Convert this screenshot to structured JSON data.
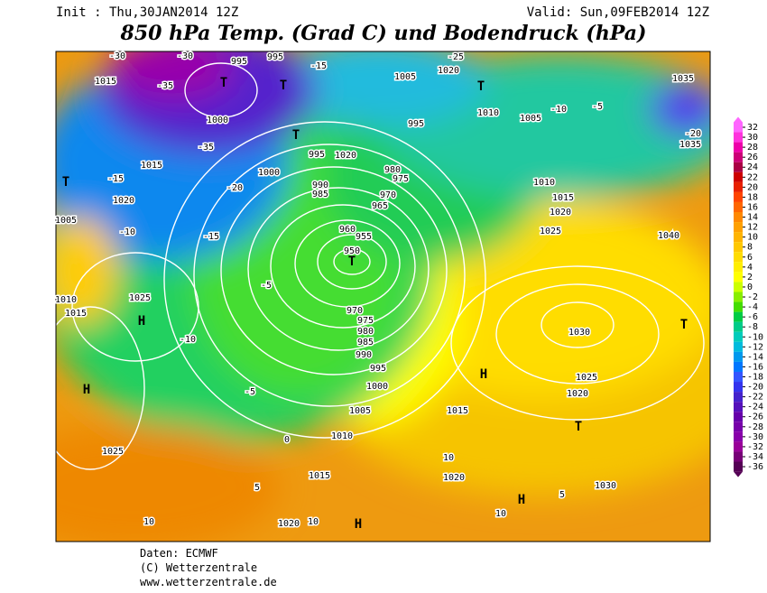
{
  "header": {
    "init": "Init : Thu,30JAN2014 12Z",
    "valid": "Valid: Sun,09FEB2014 12Z",
    "title": "850 hPa Temp. (Grad C) und Bodendruck (hPa)"
  },
  "map": {
    "labels": [
      "-30",
      "-30",
      "995",
      "995",
      "-15",
      "1015",
      "-35",
      "T",
      "T",
      "1005",
      "1020",
      "-25",
      "T",
      "1035",
      "1000",
      "-35",
      "T",
      "995",
      "1020",
      "995",
      "1010",
      "1005",
      "-10",
      "-5",
      "-20",
      "1035",
      "1015",
      "T",
      "-15",
      "1000",
      "-20",
      "980",
      "975",
      "990",
      "985",
      "970",
      "965",
      "1010",
      "1015",
      "1020",
      "1020",
      "1005",
      "-10",
      "-15",
      "1025",
      "1040",
      "960",
      "955",
      "950",
      "T",
      "-5",
      "1010",
      "1015",
      "1025",
      "H",
      "970",
      "975",
      "980",
      "985",
      "990",
      "-10",
      "1030",
      "T",
      "H",
      "995",
      "1000",
      "-5",
      "1025",
      "1020",
      "H",
      "1005",
      "1015",
      "T",
      "1010",
      "0",
      "1025",
      "10",
      "1020",
      "1015",
      "5",
      "1030",
      "H",
      "5",
      "10",
      "1020",
      "10",
      "H",
      "10"
    ],
    "colorbar": {
      "ticks": [
        32,
        30,
        28,
        26,
        24,
        22,
        20,
        18,
        16,
        14,
        12,
        10,
        8,
        6,
        4,
        2,
        0,
        -2,
        -4,
        -6,
        -8,
        -10,
        -12,
        -14,
        -16,
        -18,
        -20,
        -22,
        -24,
        -26,
        -28,
        -30,
        -32,
        -34,
        -36
      ],
      "colors": [
        "#ff66ff",
        "#ff33dd",
        "#ee00aa",
        "#cc0077",
        "#aa0044",
        "#cc0000",
        "#e82000",
        "#ff4400",
        "#ff6600",
        "#ff8800",
        "#ffa000",
        "#ffb400",
        "#ffc800",
        "#ffdc00",
        "#ffee00",
        "#ffff00",
        "#ccff00",
        "#88ee00",
        "#44dd00",
        "#00cc44",
        "#00cc88",
        "#00ccbb",
        "#00bbdd",
        "#0099ee",
        "#0077ff",
        "#3355ff",
        "#3333ee",
        "#4422cc",
        "#5511bb",
        "#6600aa",
        "#7700aa",
        "#8800aa",
        "#990099",
        "#770077",
        "#550055"
      ]
    }
  },
  "footer": {
    "source": "Daten: ECMWF",
    "copyright": "(C) Wetterzentrale",
    "url": "www.wetterzentrale.de"
  }
}
